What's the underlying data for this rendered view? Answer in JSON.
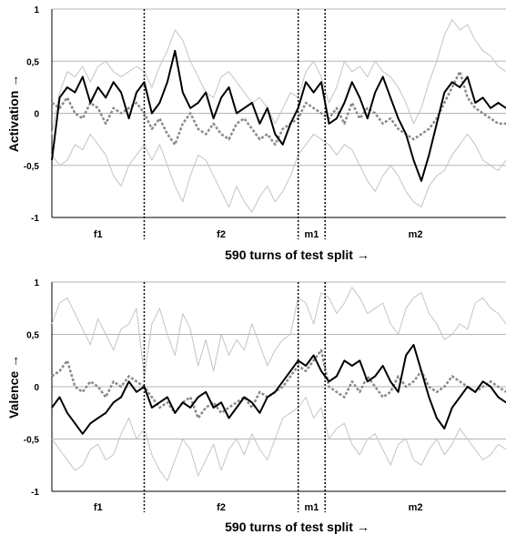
{
  "chart_data": [
    {
      "type": "line",
      "ylabel": "Activation →",
      "xlabel": "590 turns of test split →",
      "ylim": [
        -1,
        1
      ],
      "yticks": [
        "1",
        "0,5",
        "0",
        "-0,5",
        "-1"
      ],
      "ytick_values": [
        1,
        0.5,
        0,
        -0.5,
        -1
      ],
      "segments": [
        {
          "label": "f1",
          "start": 0,
          "end": 120
        },
        {
          "label": "f2",
          "start": 120,
          "end": 320
        },
        {
          "label": "m1",
          "start": 320,
          "end": 355
        },
        {
          "label": "m2",
          "start": 355,
          "end": 590
        }
      ],
      "boundaries": [
        120,
        320,
        355
      ],
      "grid": true,
      "series": [
        {
          "style": "upper-bound",
          "color": "#c4c4c4",
          "x": [
            0,
            10,
            20,
            30,
            40,
            50,
            60,
            70,
            80,
            90,
            100,
            110,
            120,
            130,
            140,
            150,
            160,
            170,
            180,
            190,
            200,
            210,
            220,
            230,
            240,
            250,
            260,
            270,
            280,
            290,
            300,
            310,
            320,
            330,
            340,
            350,
            360,
            370,
            380,
            390,
            400,
            410,
            420,
            430,
            440,
            450,
            460,
            470,
            480,
            490,
            500,
            510,
            520,
            530,
            540,
            550,
            560,
            570,
            580,
            590
          ],
          "y": [
            -0.2,
            0.2,
            0.4,
            0.35,
            0.45,
            0.3,
            0.45,
            0.5,
            0.4,
            0.35,
            0.4,
            0.45,
            0.4,
            0.25,
            0.45,
            0.6,
            0.8,
            0.7,
            0.5,
            0.35,
            0.2,
            0.15,
            0.35,
            0.4,
            0.3,
            0.2,
            0.1,
            0.15,
            0.05,
            -0.1,
            0.05,
            0.2,
            0.15,
            0.4,
            0.5,
            0.35,
            0.1,
            0.25,
            0.5,
            0.4,
            0.45,
            0.35,
            0.5,
            0.4,
            0.35,
            0.25,
            0.1,
            -0.1,
            0.05,
            0.3,
            0.5,
            0.75,
            0.9,
            0.8,
            0.85,
            0.7,
            0.6,
            0.55,
            0.45,
            0.4
          ]
        },
        {
          "style": "lower-bound",
          "color": "#c4c4c4",
          "x": [
            0,
            10,
            20,
            30,
            40,
            50,
            60,
            70,
            80,
            90,
            100,
            110,
            120,
            130,
            140,
            150,
            160,
            170,
            180,
            190,
            200,
            210,
            220,
            230,
            240,
            250,
            260,
            270,
            280,
            290,
            300,
            310,
            320,
            330,
            340,
            350,
            360,
            370,
            380,
            390,
            400,
            410,
            420,
            430,
            440,
            450,
            460,
            470,
            480,
            490,
            500,
            510,
            520,
            530,
            540,
            550,
            560,
            570,
            580,
            590
          ],
          "y": [
            -0.4,
            -0.5,
            -0.45,
            -0.3,
            -0.35,
            -0.2,
            -0.3,
            -0.4,
            -0.6,
            -0.7,
            -0.5,
            -0.4,
            -0.3,
            -0.45,
            -0.3,
            -0.5,
            -0.7,
            -0.85,
            -0.6,
            -0.4,
            -0.45,
            -0.6,
            -0.75,
            -0.9,
            -0.7,
            -0.85,
            -0.95,
            -0.8,
            -0.7,
            -0.85,
            -0.75,
            -0.6,
            -0.4,
            -0.3,
            -0.2,
            -0.25,
            -0.3,
            -0.4,
            -0.3,
            -0.35,
            -0.5,
            -0.65,
            -0.75,
            -0.6,
            -0.5,
            -0.6,
            -0.75,
            -0.85,
            -0.9,
            -0.7,
            -0.6,
            -0.55,
            -0.4,
            -0.3,
            -0.2,
            -0.3,
            -0.45,
            -0.5,
            -0.55,
            -0.45
          ]
        },
        {
          "style": "dotted",
          "color": "#8a8a8a",
          "x": [
            0,
            10,
            20,
            30,
            40,
            50,
            60,
            70,
            80,
            90,
            100,
            110,
            120,
            130,
            140,
            150,
            160,
            170,
            180,
            190,
            200,
            210,
            220,
            230,
            240,
            250,
            260,
            270,
            280,
            290,
            300,
            310,
            320,
            330,
            340,
            350,
            360,
            370,
            380,
            390,
            400,
            410,
            420,
            430,
            440,
            450,
            460,
            470,
            480,
            490,
            500,
            510,
            520,
            530,
            540,
            550,
            560,
            570,
            580,
            590
          ],
          "y": [
            0.1,
            0.05,
            0.15,
            0,
            -0.05,
            0.1,
            0.05,
            -0.1,
            0.05,
            0,
            0.05,
            0.1,
            0,
            -0.15,
            -0.05,
            -0.2,
            -0.3,
            -0.1,
            0,
            -0.15,
            -0.2,
            -0.1,
            -0.2,
            -0.25,
            -0.1,
            -0.05,
            -0.15,
            -0.25,
            -0.2,
            -0.3,
            -0.15,
            -0.1,
            -0.05,
            0.1,
            0.05,
            0,
            -0.05,
            0.05,
            -0.1,
            0.1,
            -0.05,
            0.05,
            0,
            -0.1,
            -0.05,
            -0.15,
            -0.2,
            -0.25,
            -0.2,
            -0.15,
            -0.05,
            0.1,
            0.25,
            0.4,
            0.15,
            0.05,
            0,
            -0.05,
            -0.1,
            -0.1
          ]
        },
        {
          "style": "solid",
          "color": "#000000",
          "x": [
            0,
            10,
            20,
            30,
            40,
            50,
            60,
            70,
            80,
            90,
            100,
            110,
            120,
            130,
            140,
            150,
            160,
            170,
            180,
            190,
            200,
            210,
            220,
            230,
            240,
            250,
            260,
            270,
            280,
            290,
            300,
            310,
            320,
            330,
            340,
            350,
            360,
            370,
            380,
            390,
            400,
            410,
            420,
            430,
            440,
            450,
            460,
            470,
            480,
            490,
            500,
            510,
            520,
            530,
            540,
            550,
            560,
            570,
            580,
            590
          ],
          "y": [
            -0.45,
            0.15,
            0.25,
            0.2,
            0.35,
            0.1,
            0.25,
            0.15,
            0.3,
            0.2,
            -0.05,
            0.2,
            0.3,
            0,
            0.1,
            0.3,
            0.6,
            0.2,
            0.05,
            0.1,
            0.2,
            -0.05,
            0.15,
            0.25,
            0,
            0.05,
            0.1,
            -0.1,
            0.05,
            -0.2,
            -0.3,
            -0.1,
            0.05,
            0.3,
            0.2,
            0.3,
            -0.1,
            -0.05,
            0.1,
            0.3,
            0.15,
            -0.05,
            0.2,
            0.35,
            0.15,
            -0.05,
            -0.2,
            -0.45,
            -0.65,
            -0.4,
            -0.1,
            0.2,
            0.3,
            0.25,
            0.35,
            0.1,
            0.15,
            0.05,
            0.1,
            0.05
          ]
        }
      ]
    },
    {
      "type": "line",
      "ylabel": "Valence →",
      "xlabel": "590 turns of test split →",
      "ylim": [
        -1,
        1
      ],
      "yticks": [
        "1",
        "0,5",
        "0",
        "-0,5",
        "-1"
      ],
      "ytick_values": [
        1,
        0.5,
        0,
        -0.5,
        -1
      ],
      "segments": [
        {
          "label": "f1",
          "start": 0,
          "end": 120
        },
        {
          "label": "f2",
          "start": 120,
          "end": 320
        },
        {
          "label": "m1",
          "start": 320,
          "end": 355
        },
        {
          "label": "m2",
          "start": 355,
          "end": 590
        }
      ],
      "boundaries": [
        120,
        320,
        355
      ],
      "grid": true,
      "series": [
        {
          "style": "upper-bound",
          "color": "#c4c4c4",
          "x": [
            0,
            10,
            20,
            30,
            40,
            50,
            60,
            70,
            80,
            90,
            100,
            110,
            120,
            130,
            140,
            150,
            160,
            170,
            180,
            190,
            200,
            210,
            220,
            230,
            240,
            250,
            260,
            270,
            280,
            290,
            300,
            310,
            320,
            330,
            340,
            350,
            360,
            370,
            380,
            390,
            400,
            410,
            420,
            430,
            440,
            450,
            460,
            470,
            480,
            490,
            500,
            510,
            520,
            530,
            540,
            550,
            560,
            570,
            580,
            590
          ],
          "y": [
            0.6,
            0.8,
            0.85,
            0.7,
            0.55,
            0.4,
            0.65,
            0.5,
            0.35,
            0.55,
            0.6,
            0.75,
            0.1,
            0.6,
            0.75,
            0.5,
            0.3,
            0.7,
            0.55,
            0.2,
            0.45,
            0.15,
            0.5,
            0.3,
            0.45,
            0.35,
            0.6,
            0.4,
            0.2,
            0.35,
            0.45,
            0.5,
            0.85,
            0.8,
            0.6,
            0.9,
            0.85,
            0.7,
            0.8,
            0.95,
            0.85,
            0.7,
            0.75,
            0.8,
            0.6,
            0.5,
            0.75,
            0.85,
            0.9,
            0.7,
            0.6,
            0.45,
            0.5,
            0.6,
            0.55,
            0.8,
            0.85,
            0.75,
            0.7,
            0.6
          ]
        },
        {
          "style": "lower-bound",
          "color": "#c4c4c4",
          "x": [
            0,
            10,
            20,
            30,
            40,
            50,
            60,
            70,
            80,
            90,
            100,
            110,
            120,
            130,
            140,
            150,
            160,
            170,
            180,
            190,
            200,
            210,
            220,
            230,
            240,
            250,
            260,
            270,
            280,
            290,
            300,
            310,
            320,
            330,
            340,
            350,
            360,
            370,
            380,
            390,
            400,
            410,
            420,
            430,
            440,
            450,
            460,
            470,
            480,
            490,
            500,
            510,
            520,
            530,
            540,
            550,
            560,
            570,
            580,
            590
          ],
          "y": [
            -0.5,
            -0.6,
            -0.7,
            -0.8,
            -0.75,
            -0.6,
            -0.55,
            -0.7,
            -0.65,
            -0.45,
            -0.3,
            -0.5,
            -0.4,
            -0.65,
            -0.8,
            -0.9,
            -0.7,
            -0.5,
            -0.6,
            -0.85,
            -0.7,
            -0.55,
            -0.8,
            -0.6,
            -0.5,
            -0.65,
            -0.45,
            -0.6,
            -0.7,
            -0.5,
            -0.3,
            -0.25,
            -0.2,
            -0.1,
            -0.3,
            -0.2,
            -0.5,
            -0.4,
            -0.35,
            -0.55,
            -0.65,
            -0.5,
            -0.45,
            -0.6,
            -0.75,
            -0.55,
            -0.5,
            -0.7,
            -0.75,
            -0.6,
            -0.5,
            -0.65,
            -0.55,
            -0.4,
            -0.5,
            -0.6,
            -0.7,
            -0.65,
            -0.55,
            -0.6
          ]
        },
        {
          "style": "dotted",
          "color": "#8a8a8a",
          "x": [
            0,
            10,
            20,
            30,
            40,
            50,
            60,
            70,
            80,
            90,
            100,
            110,
            120,
            130,
            140,
            150,
            160,
            170,
            180,
            190,
            200,
            210,
            220,
            230,
            240,
            250,
            260,
            270,
            280,
            290,
            300,
            310,
            320,
            330,
            340,
            350,
            360,
            370,
            380,
            390,
            400,
            410,
            420,
            430,
            440,
            450,
            460,
            470,
            480,
            490,
            500,
            510,
            520,
            530,
            540,
            550,
            560,
            570,
            580,
            590
          ],
          "y": [
            0.1,
            0.15,
            0.25,
            0,
            -0.05,
            0.05,
            0,
            -0.1,
            0.05,
            0,
            0.1,
            0.05,
            0,
            -0.1,
            -0.2,
            -0.15,
            -0.25,
            -0.15,
            -0.1,
            -0.3,
            -0.2,
            -0.15,
            -0.25,
            -0.2,
            -0.15,
            -0.1,
            -0.2,
            -0.05,
            -0.1,
            -0.05,
            0,
            0.1,
            0.2,
            0.15,
            0.25,
            0.35,
            0,
            -0.05,
            -0.1,
            0.05,
            -0.05,
            0.1,
            0,
            -0.1,
            -0.05,
            0.1,
            0,
            0.05,
            0.15,
            0,
            -0.05,
            0,
            0.1,
            0.05,
            0,
            -0.05,
            0,
            0.05,
            0,
            -0.05
          ]
        },
        {
          "style": "solid",
          "color": "#000000",
          "x": [
            0,
            10,
            20,
            30,
            40,
            50,
            60,
            70,
            80,
            90,
            100,
            110,
            120,
            130,
            140,
            150,
            160,
            170,
            180,
            190,
            200,
            210,
            220,
            230,
            240,
            250,
            260,
            270,
            280,
            290,
            300,
            310,
            320,
            330,
            340,
            350,
            360,
            370,
            380,
            390,
            400,
            410,
            420,
            430,
            440,
            450,
            460,
            470,
            480,
            490,
            500,
            510,
            520,
            530,
            540,
            550,
            560,
            570,
            580,
            590
          ],
          "y": [
            -0.2,
            -0.1,
            -0.25,
            -0.35,
            -0.45,
            -0.35,
            -0.3,
            -0.25,
            -0.15,
            -0.1,
            0.05,
            -0.05,
            0,
            -0.2,
            -0.15,
            -0.1,
            -0.25,
            -0.15,
            -0.2,
            -0.1,
            -0.05,
            -0.2,
            -0.15,
            -0.3,
            -0.2,
            -0.1,
            -0.15,
            -0.25,
            -0.1,
            -0.05,
            0.05,
            0.15,
            0.25,
            0.2,
            0.3,
            0.15,
            0.05,
            0.1,
            0.25,
            0.2,
            0.25,
            0.05,
            0.1,
            0.2,
            0.05,
            -0.05,
            0.3,
            0.4,
            0.15,
            -0.1,
            -0.3,
            -0.4,
            -0.2,
            -0.1,
            0,
            -0.05,
            0.05,
            0,
            -0.1,
            -0.15
          ]
        }
      ]
    }
  ]
}
